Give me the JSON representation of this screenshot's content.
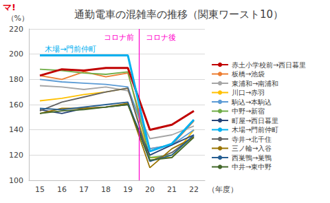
{
  "chart_data": {
    "type": "line",
    "logo": "マ!",
    "title": "通勤電車の混雑率の推移（関東ワースト10）",
    "y_label": "（%）",
    "x_label": "（年度）",
    "x": [
      15,
      16,
      17,
      18,
      19,
      20,
      21,
      22
    ],
    "xlim": [
      14.5,
      22.5
    ],
    "xticks": [
      15,
      16,
      17,
      18,
      19,
      20,
      21,
      22
    ],
    "ylim": [
      100,
      220
    ],
    "yticks": [
      100,
      120,
      140,
      160,
      180,
      200,
      220
    ],
    "grid": true,
    "legend": "right",
    "divider_x": 19.5,
    "annotations": [
      {
        "text": "木場→門前仲町",
        "x": 16.4,
        "y": 204,
        "color": "#00b0f0"
      },
      {
        "text": "コロナ前",
        "x": 18.6,
        "y": 213,
        "color": "#ff00cc"
      },
      {
        "text": "コロナ後",
        "x": 20.5,
        "y": 213,
        "color": "#ff00cc"
      }
    ],
    "series": [
      {
        "name": "赤土小学校前→西日暮里",
        "color": "#c00000",
        "values": [
          183,
          188,
          187,
          189,
          189,
          140,
          144,
          155
        ]
      },
      {
        "name": "板橋→池袋",
        "color": "#ed7d31",
        "values": [
          183,
          180,
          186,
          182,
          185,
          125,
          128,
          147
        ]
      },
      {
        "name": "東浦和→南浦和",
        "color": "#a5a5a5",
        "values": [
          175,
          174,
          172,
          174,
          171,
          133,
          136,
          143
        ]
      },
      {
        "name": "川口→赤羽",
        "color": "#ffc000",
        "values": [
          163,
          165,
          168,
          170,
          173,
          118,
          118,
          140
        ]
      },
      {
        "name": "駒込→本駒込",
        "color": "#5b9bd5",
        "values": [
          180,
          178,
          177,
          176,
          174,
          125,
          128,
          140
        ]
      },
      {
        "name": "中野→新宿",
        "color": "#70ad47",
        "values": [
          188,
          187,
          185,
          184,
          186,
          118,
          120,
          135
        ]
      },
      {
        "name": "町屋→西日暮里",
        "color": "#264478",
        "values": [
          156,
          153,
          157,
          158,
          160,
          120,
          128,
          136
        ]
      },
      {
        "name": "木場→門前仲町",
        "color": "#00b0f0",
        "values": [
          199,
          199,
          199,
          199,
          199,
          123,
          129,
          148
        ]
      },
      {
        "name": "寺井→北千住",
        "color": "#636363",
        "values": [
          155,
          162,
          166,
          170,
          173,
          115,
          122,
          135
        ]
      },
      {
        "name": "三ノ輪→入谷",
        "color": "#997300",
        "values": [
          153,
          157,
          157,
          158,
          161,
          110,
          125,
          134
        ]
      },
      {
        "name": "西巣鴨→巣鴨",
        "color": "#255e91",
        "values": [
          157,
          156,
          158,
          160,
          162,
          115,
          120,
          136
        ]
      },
      {
        "name": "中井→東中野",
        "color": "#43682b",
        "values": [
          153,
          155,
          156,
          158,
          160,
          116,
          118,
          134
        ]
      }
    ]
  }
}
